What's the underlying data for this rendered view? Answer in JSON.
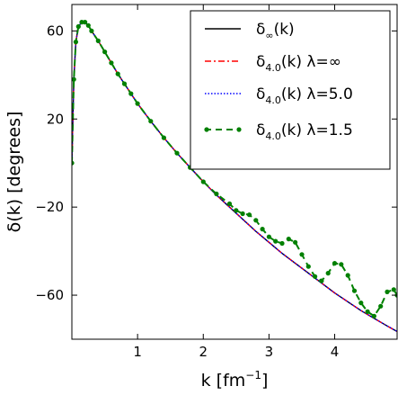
{
  "chart_data": {
    "type": "line",
    "title": "",
    "xlabel": "k [fm",
    "xlabel_sup": "−1",
    "xlabel_close": "]",
    "ylabel": "δ(k) [degrees]",
    "xlim": [
      0,
      4.95
    ],
    "ylim": [
      -80,
      72
    ],
    "xticks": [
      1,
      2,
      3,
      4
    ],
    "xtick_labels": [
      "1",
      "2",
      "3",
      "4"
    ],
    "yticks": [
      60,
      20,
      -20,
      -60
    ],
    "ytick_labels": [
      "60",
      "20",
      "−20",
      "−60"
    ],
    "grid": false,
    "legend_position": "top-right",
    "series": [
      {
        "name": "δ∞(k)",
        "label_main": "δ",
        "label_sub": "∞",
        "label_rest": "(k)",
        "color": "#000000",
        "style": "solid",
        "x": [
          0.0,
          0.03,
          0.06,
          0.1,
          0.15,
          0.2,
          0.25,
          0.3,
          0.4,
          0.5,
          0.6,
          0.7,
          0.8,
          0.9,
          1.0,
          1.2,
          1.4,
          1.6,
          1.8,
          2.0,
          2.2,
          2.4,
          2.6,
          2.8,
          3.0,
          3.2,
          3.4,
          3.6,
          3.8,
          4.0,
          4.2,
          4.4,
          4.6,
          4.8,
          4.95
        ],
        "y": [
          0,
          38,
          55,
          62,
          64,
          64,
          62.5,
          60,
          55.5,
          50.5,
          45.5,
          40.5,
          36,
          31.5,
          27,
          19,
          11.5,
          4.5,
          -2,
          -8.5,
          -14.5,
          -20,
          -25.5,
          -31,
          -36,
          -41,
          -45.5,
          -50,
          -54.5,
          -59,
          -63,
          -67,
          -70.5,
          -74,
          -76.5
        ]
      },
      {
        "name": "δ4.0(k) λ=∞",
        "label_main": "δ",
        "label_sub": "4.0",
        "label_rest": "(k) λ=∞",
        "color": "#ff0000",
        "style": "dashdot",
        "x": [
          0.0,
          0.03,
          0.06,
          0.1,
          0.15,
          0.2,
          0.25,
          0.3,
          0.4,
          0.5,
          0.6,
          0.7,
          0.8,
          0.9,
          1.0,
          1.2,
          1.4,
          1.6,
          1.8,
          2.0,
          2.2,
          2.4,
          2.6,
          2.8,
          3.0,
          3.2,
          3.4,
          3.6,
          3.8,
          4.0,
          4.2,
          4.4,
          4.6,
          4.8,
          4.95
        ],
        "y": [
          0,
          38,
          55,
          62,
          64,
          64,
          62.5,
          60,
          55.5,
          50.5,
          45.5,
          40.5,
          36,
          31.5,
          27,
          19,
          11.5,
          4.5,
          -2,
          -8.5,
          -14.5,
          -20,
          -25.5,
          -31,
          -36,
          -41,
          -45.5,
          -50,
          -54.5,
          -59,
          -63,
          -67,
          -70.5,
          -74,
          -76.5
        ]
      },
      {
        "name": "δ4.0(k) λ=5.0",
        "label_main": "δ",
        "label_sub": "4.0",
        "label_rest": "(k) λ=5.0",
        "color": "#0000ff",
        "style": "dotted",
        "x": [
          0.0,
          0.03,
          0.06,
          0.1,
          0.15,
          0.2,
          0.25,
          0.3,
          0.4,
          0.5,
          0.6,
          0.7,
          0.8,
          0.9,
          1.0,
          1.2,
          1.4,
          1.6,
          1.8,
          2.0,
          2.2,
          2.4,
          2.6,
          2.8,
          3.0,
          3.2,
          3.4,
          3.6,
          3.8,
          4.0,
          4.2,
          4.4,
          4.6,
          4.8,
          4.95
        ],
        "y": [
          0,
          38,
          55,
          62,
          64,
          64,
          62.5,
          60,
          55.5,
          50.5,
          45.5,
          40.5,
          36,
          31.5,
          27,
          19,
          11.5,
          4.5,
          -2,
          -8.5,
          -14.5,
          -20,
          -25.5,
          -31,
          -36,
          -41,
          -45.5,
          -50,
          -54.5,
          -59,
          -63,
          -67,
          -70.5,
          -74,
          -76.5
        ]
      },
      {
        "name": "δ4.0(k) λ=1.5",
        "label_main": "δ",
        "label_sub": "4.0",
        "label_rest": "(k) λ=1.5",
        "color": "#008000",
        "style": "dashed-markers",
        "x": [
          0.0,
          0.03,
          0.06,
          0.1,
          0.15,
          0.2,
          0.25,
          0.3,
          0.4,
          0.5,
          0.6,
          0.7,
          0.8,
          0.9,
          1.0,
          1.2,
          1.4,
          1.6,
          1.8,
          2.0,
          2.2,
          2.4,
          2.5,
          2.6,
          2.7,
          2.8,
          2.9,
          3.0,
          3.1,
          3.2,
          3.3,
          3.4,
          3.5,
          3.6,
          3.7,
          3.8,
          3.9,
          4.0,
          4.1,
          4.2,
          4.3,
          4.4,
          4.5,
          4.6,
          4.7,
          4.8,
          4.9,
          4.95
        ],
        "y": [
          0,
          38,
          55,
          62,
          64,
          64,
          62.5,
          60,
          55.5,
          50.5,
          45.5,
          40.5,
          36,
          31.5,
          27,
          19,
          11.5,
          4.5,
          -2,
          -8.5,
          -14,
          -18.5,
          -21.5,
          -23,
          -23.5,
          -26,
          -30,
          -33.5,
          -35.5,
          -36.5,
          -34.5,
          -36,
          -41.5,
          -47,
          -51.5,
          -53.5,
          -50,
          -45.5,
          -46,
          -51,
          -58,
          -63.5,
          -67.5,
          -69.5,
          -65,
          -58.5,
          -57.5,
          -60
        ]
      }
    ]
  }
}
